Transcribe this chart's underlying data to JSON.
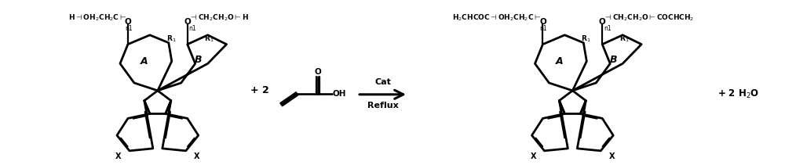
{
  "bg_color": "#ffffff",
  "lw": 1.6,
  "blw": 2.0,
  "fig_width": 10.0,
  "fig_height": 2.11,
  "dpi": 100,
  "r_fcx": 2.0,
  "r_fcy": 0.95,
  "p_fcx": 7.3,
  "p_fcy": 0.95,
  "label_A": "A",
  "label_B": "B",
  "label_R1": "R$_1$",
  "label_X": "X",
  "reactant_left_chain": "H$\\mathsf{\\dashv}$OH$_2$CH$_2$C$\\mathsf{\\vdash}$O",
  "reactant_right_chain": "O$\\mathsf{\\dashv}$CH$_2$CH$_2$O$\\mathsf{\\vdash}$H",
  "product_left_chain": "H$_2$CHCOC$\\mathsf{\\dashv}$OH$_2$CH$_2$C$\\mathsf{\\vdash}$O",
  "product_right_chain": "O$\\mathsf{\\dashv}$CH$_2$CH$_2$O$\\mathsf{\\vdash}$COCHCH$_2$",
  "sub_n1": "n1",
  "plus2": "+ 2",
  "arrow_top": "Cat",
  "arrow_bot": "Reflux",
  "byproduct": "+ 2 H$_2$O"
}
